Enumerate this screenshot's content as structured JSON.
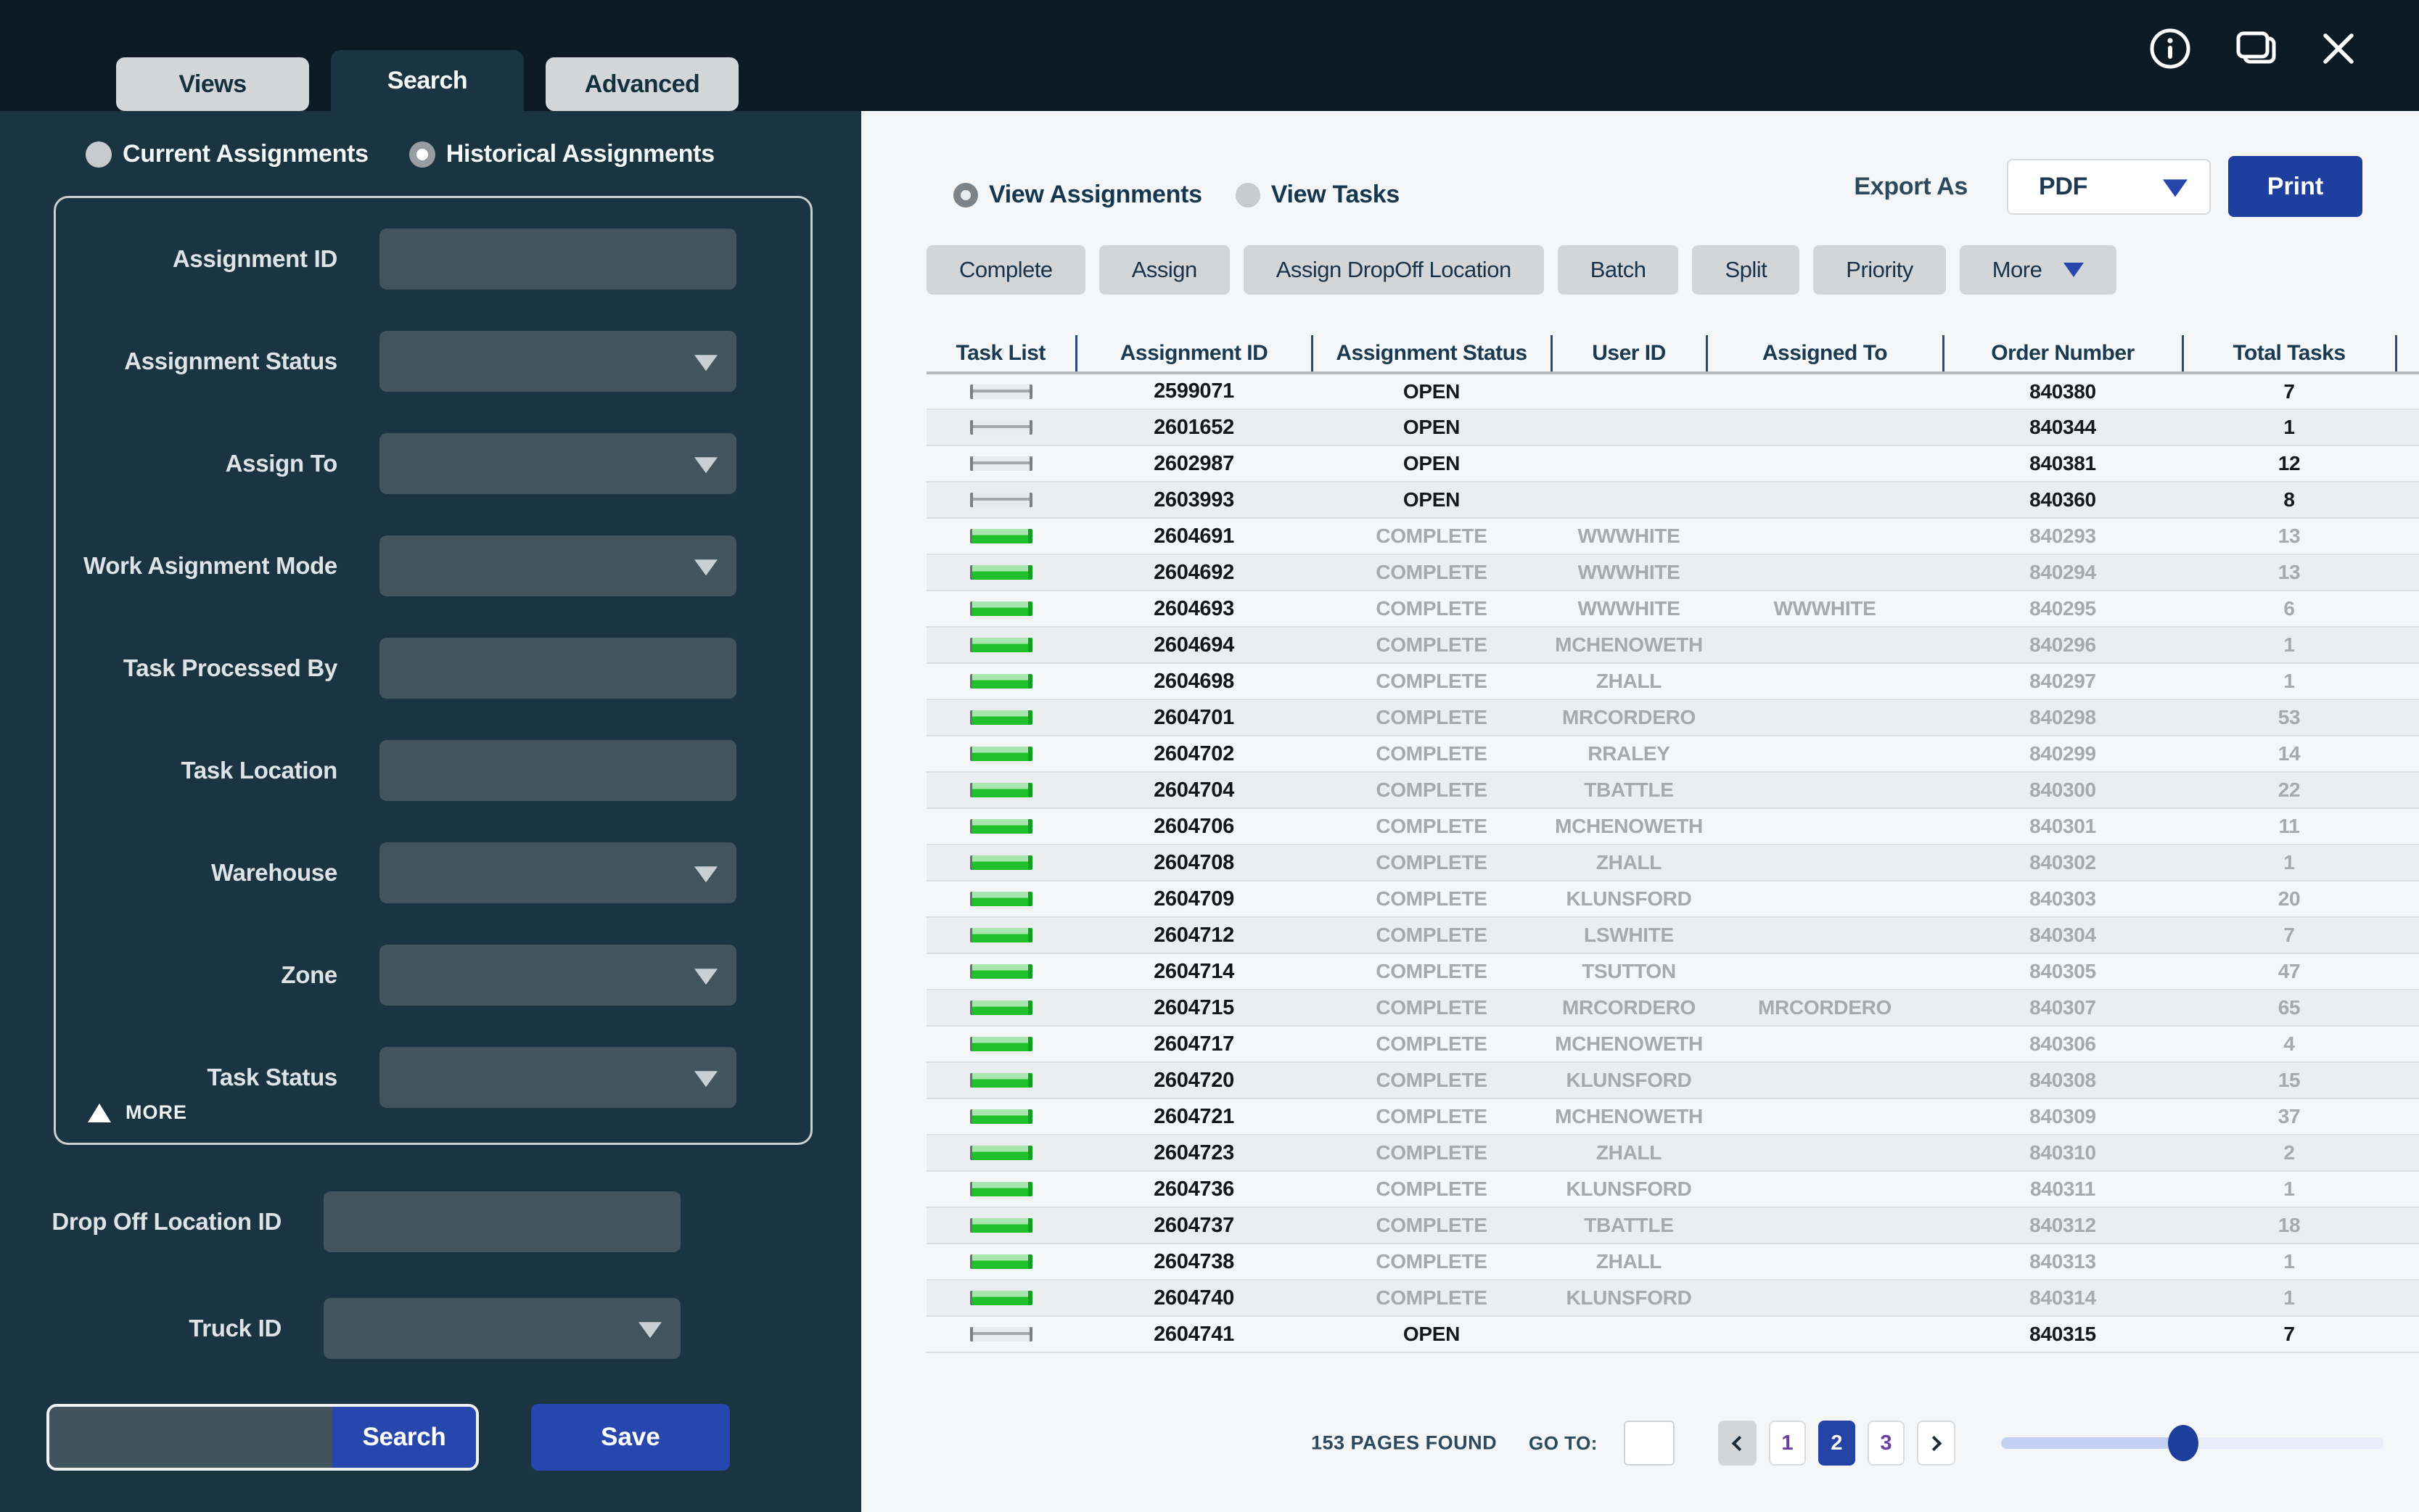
{
  "topbar": {
    "tabs": [
      {
        "label": "Views",
        "active": false
      },
      {
        "label": "Search",
        "active": true
      },
      {
        "label": "Advanced",
        "active": false
      }
    ],
    "window_icons": [
      "info",
      "windows",
      "close"
    ]
  },
  "sidebar": {
    "scope_radios": [
      {
        "label": "Current Assignments",
        "selected": false
      },
      {
        "label": "Historical Assignments",
        "selected": true
      }
    ],
    "filter_fields": [
      {
        "label": "Assignment ID",
        "type": "text",
        "value": ""
      },
      {
        "label": "Assignment Status",
        "type": "select",
        "value": ""
      },
      {
        "label": "Assign To",
        "type": "select",
        "value": ""
      },
      {
        "label": "Work Asignment Mode",
        "type": "select",
        "value": ""
      },
      {
        "label": "Task Processed By",
        "type": "text",
        "value": ""
      },
      {
        "label": "Task Location",
        "type": "text",
        "value": ""
      },
      {
        "label": "Warehouse",
        "type": "select",
        "value": ""
      },
      {
        "label": "Zone",
        "type": "select",
        "value": ""
      },
      {
        "label": "Task Status",
        "type": "select",
        "value": ""
      }
    ],
    "more_label": "MORE",
    "extra_fields": [
      {
        "label": "Drop Off Location ID",
        "type": "text",
        "value": ""
      },
      {
        "label": "Truck ID",
        "type": "select",
        "value": ""
      }
    ],
    "quick_search_value": "",
    "search_label": "Search",
    "save_label": "Save"
  },
  "main": {
    "view_radios": [
      {
        "label": "View Assignments",
        "selected": true
      },
      {
        "label": "View Tasks",
        "selected": false
      }
    ],
    "export": {
      "label": "Export As",
      "selected_option": "PDF",
      "print_label": "Print"
    },
    "actions": [
      "Complete",
      "Assign",
      "Assign DropOff Location",
      "Batch",
      "Split",
      "Priority"
    ],
    "more_action_label": "More",
    "table": {
      "columns": [
        "Task List",
        "Assignment ID",
        "Assignment Status",
        "User ID",
        "Assigned To",
        "Order Number",
        "Total Tasks"
      ],
      "rows": [
        {
          "id": "2599071",
          "status": "OPEN",
          "user": "",
          "assigned": "",
          "order": "840380",
          "total": "7"
        },
        {
          "id": "2601652",
          "status": "OPEN",
          "user": "",
          "assigned": "",
          "order": "840344",
          "total": "1"
        },
        {
          "id": "2602987",
          "status": "OPEN",
          "user": "",
          "assigned": "",
          "order": "840381",
          "total": "12"
        },
        {
          "id": "2603993",
          "status": "OPEN",
          "user": "",
          "assigned": "",
          "order": "840360",
          "total": "8"
        },
        {
          "id": "2604691",
          "status": "COMPLETE",
          "user": "WWWHITE",
          "assigned": "",
          "order": "840293",
          "total": "13"
        },
        {
          "id": "2604692",
          "status": "COMPLETE",
          "user": "WWWHITE",
          "assigned": "",
          "order": "840294",
          "total": "13"
        },
        {
          "id": "2604693",
          "status": "COMPLETE",
          "user": "WWWHITE",
          "assigned": "WWWHITE",
          "order": "840295",
          "total": "6"
        },
        {
          "id": "2604694",
          "status": "COMPLETE",
          "user": "MCHENOWETH",
          "assigned": "",
          "order": "840296",
          "total": "1"
        },
        {
          "id": "2604698",
          "status": "COMPLETE",
          "user": "ZHALL",
          "assigned": "",
          "order": "840297",
          "total": "1"
        },
        {
          "id": "2604701",
          "status": "COMPLETE",
          "user": "MRCORDERO",
          "assigned": "",
          "order": "840298",
          "total": "53"
        },
        {
          "id": "2604702",
          "status": "COMPLETE",
          "user": "RRALEY",
          "assigned": "",
          "order": "840299",
          "total": "14"
        },
        {
          "id": "2604704",
          "status": "COMPLETE",
          "user": "TBATTLE",
          "assigned": "",
          "order": "840300",
          "total": "22"
        },
        {
          "id": "2604706",
          "status": "COMPLETE",
          "user": "MCHENOWETH",
          "assigned": "",
          "order": "840301",
          "total": "11"
        },
        {
          "id": "2604708",
          "status": "COMPLETE",
          "user": "ZHALL",
          "assigned": "",
          "order": "840302",
          "total": "1"
        },
        {
          "id": "2604709",
          "status": "COMPLETE",
          "user": "KLUNSFORD",
          "assigned": "",
          "order": "840303",
          "total": "20"
        },
        {
          "id": "2604712",
          "status": "COMPLETE",
          "user": "LSWHITE",
          "assigned": "",
          "order": "840304",
          "total": "7"
        },
        {
          "id": "2604714",
          "status": "COMPLETE",
          "user": "TSUTTON",
          "assigned": "",
          "order": "840305",
          "total": "47"
        },
        {
          "id": "2604715",
          "status": "COMPLETE",
          "user": "MRCORDERO",
          "assigned": "MRCORDERO",
          "order": "840307",
          "total": "65"
        },
        {
          "id": "2604717",
          "status": "COMPLETE",
          "user": "MCHENOWETH",
          "assigned": "",
          "order": "840306",
          "total": "4"
        },
        {
          "id": "2604720",
          "status": "COMPLETE",
          "user": "KLUNSFORD",
          "assigned": "",
          "order": "840308",
          "total": "15"
        },
        {
          "id": "2604721",
          "status": "COMPLETE",
          "user": "MCHENOWETH",
          "assigned": "",
          "order": "840309",
          "total": "37"
        },
        {
          "id": "2604723",
          "status": "COMPLETE",
          "user": "ZHALL",
          "assigned": "",
          "order": "840310",
          "total": "2"
        },
        {
          "id": "2604736",
          "status": "COMPLETE",
          "user": "KLUNSFORD",
          "assigned": "",
          "order": "840311",
          "total": "1"
        },
        {
          "id": "2604737",
          "status": "COMPLETE",
          "user": "TBATTLE",
          "assigned": "",
          "order": "840312",
          "total": "18"
        },
        {
          "id": "2604738",
          "status": "COMPLETE",
          "user": "ZHALL",
          "assigned": "",
          "order": "840313",
          "total": "1"
        },
        {
          "id": "2604740",
          "status": "COMPLETE",
          "user": "KLUNSFORD",
          "assigned": "",
          "order": "840314",
          "total": "1"
        },
        {
          "id": "2604741",
          "status": "OPEN",
          "user": "",
          "assigned": "",
          "order": "840315",
          "total": "7"
        }
      ]
    },
    "pagination": {
      "results_text": "153 PAGES FOUND",
      "goto_label": "GO TO:",
      "goto_value": "",
      "pages": [
        "1",
        "2",
        "3"
      ],
      "active_page": "2"
    }
  },
  "colors": {
    "topbar_bg": "#0c1a24",
    "sidebar_bg": "#1a3541",
    "field_bg": "#42555f",
    "accent_blue": "#2847ae",
    "print_blue": "#1f3f9e",
    "active_page_blue": "#2443a4",
    "page_number_purple": "#6b3ba6",
    "complete_green": "#21c12d",
    "open_bar_gray": "#a3a7aa",
    "main_bg": "#f4f6f7",
    "header_separator_blue": "#274a86"
  }
}
